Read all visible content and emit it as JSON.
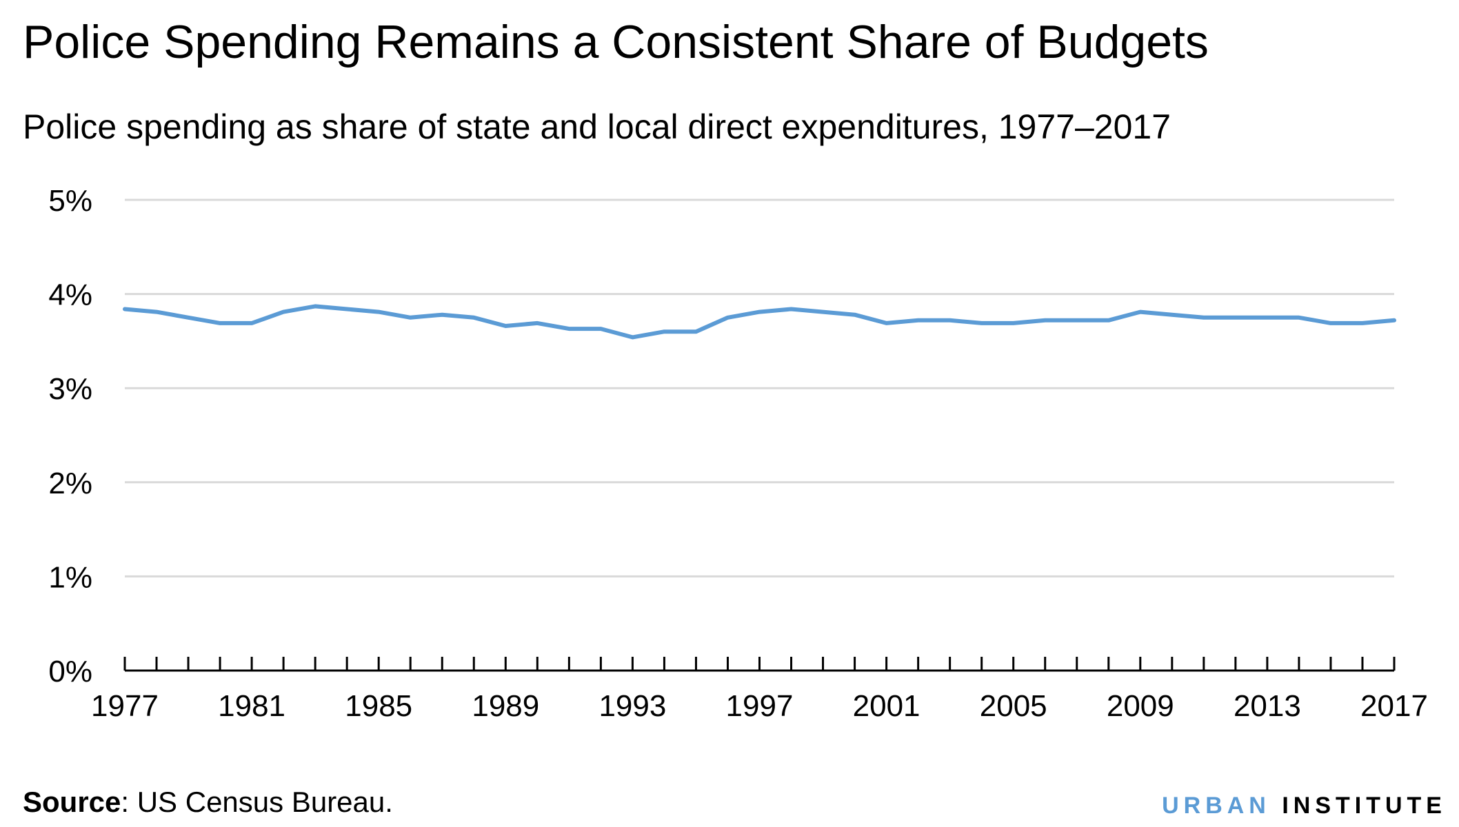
{
  "header": {
    "title": "Police Spending Remains a Consistent Share of Budgets",
    "subtitle": "Police spending as share of state and local direct expenditures, 1977–2017"
  },
  "footer": {
    "source_label": "Source",
    "source_text": ": US Census Bureau.",
    "logo_urban": "URBAN",
    "logo_institute": "INSTITUTE"
  },
  "colors": {
    "line": "#5b9bd5",
    "grid": "#d9d9d9",
    "axis": "#000000"
  },
  "chart_data": {
    "type": "line",
    "x": [
      1977,
      1978,
      1979,
      1980,
      1981,
      1982,
      1983,
      1984,
      1985,
      1986,
      1987,
      1988,
      1989,
      1990,
      1991,
      1992,
      1993,
      1994,
      1995,
      1996,
      1997,
      1998,
      1999,
      2000,
      2001,
      2002,
      2003,
      2004,
      2005,
      2006,
      2007,
      2008,
      2009,
      2010,
      2011,
      2012,
      2013,
      2014,
      2015,
      2016,
      2017
    ],
    "series": [
      {
        "values": [
          3.84,
          3.81,
          3.75,
          3.69,
          3.69,
          3.81,
          3.87,
          3.84,
          3.81,
          3.75,
          3.78,
          3.75,
          3.66,
          3.69,
          3.63,
          3.63,
          3.54,
          3.6,
          3.6,
          3.75,
          3.81,
          3.84,
          3.81,
          3.78,
          3.69,
          3.72,
          3.72,
          3.69,
          3.69,
          3.72,
          3.72,
          3.72,
          3.81,
          3.78,
          3.75,
          3.75,
          3.75,
          3.75,
          3.69,
          3.69,
          3.72
        ]
      }
    ],
    "xlim": [
      1977,
      2017
    ],
    "ylim": [
      0,
      5
    ],
    "y_ticks": [
      0,
      1,
      2,
      3,
      4,
      5
    ],
    "y_tick_labels": [
      "0%",
      "1%",
      "2%",
      "3%",
      "4%",
      "5%"
    ],
    "x_tick_labels": [
      "1977",
      "1981",
      "1985",
      "1989",
      "1993",
      "1997",
      "2001",
      "2005",
      "2009",
      "2013",
      "2017"
    ],
    "grid": true,
    "legend": "none"
  }
}
